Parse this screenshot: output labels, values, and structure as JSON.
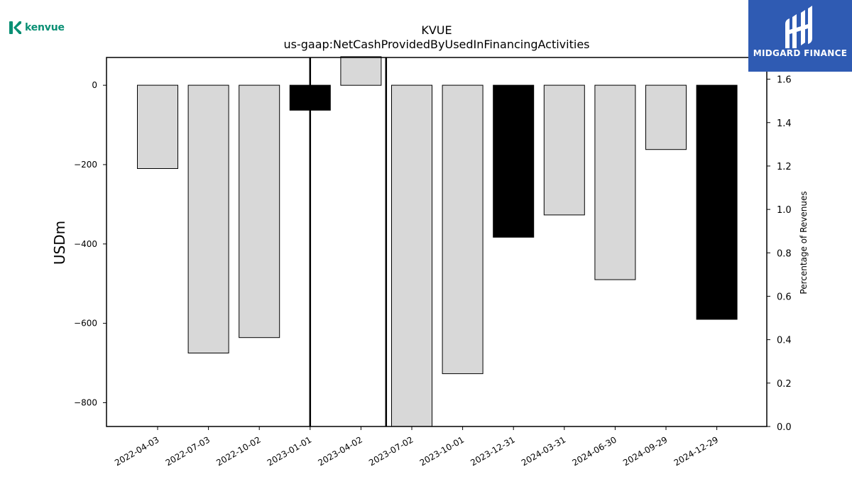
{
  "branding": {
    "company_logo_text": "kenvue",
    "company_logo_color": "#0a8f74",
    "badge_text": "MIDGARD FINANCE",
    "badge_color": "#2f5bb3"
  },
  "chart_data": {
    "type": "bar",
    "title": "KVUE",
    "subtitle": "us-gaap:NetCashProvidedByUsedInFinancingActivities",
    "ylabel": "USDm",
    "y2label": "Percentage of Revenues",
    "ylim": [
      -860,
      70
    ],
    "y2lim": [
      0,
      1.7
    ],
    "yticks": [
      0,
      -200,
      -400,
      -600,
      -800
    ],
    "y2ticks": [
      0.0,
      0.2,
      0.4,
      0.6,
      0.8,
      1.0,
      1.2,
      1.4,
      1.6
    ],
    "y2tick_labels": [
      "0.0",
      "0.2",
      "0.4",
      "0.6",
      "0.8",
      "1.0",
      "1.2",
      "1.4",
      "1.6"
    ],
    "categories": [
      "2022-04-03",
      "2022-07-03",
      "2022-10-02",
      "2023-01-01",
      "2023-04-02",
      "2023-07-02",
      "2023-10-01",
      "2023-12-31",
      "2024-03-31",
      "2024-06-30",
      "2024-09-29",
      "2024-12-29"
    ],
    "values": [
      -210,
      -675,
      -636,
      -63,
      72,
      -860,
      -727,
      -383,
      -327,
      -490,
      -162,
      -590
    ],
    "bar_colors": [
      "#d8d8d8",
      "#d8d8d8",
      "#d8d8d8",
      "#000000",
      "#d8d8d8",
      "#d8d8d8",
      "#d8d8d8",
      "#000000",
      "#d8d8d8",
      "#d8d8d8",
      "#d8d8d8",
      "#000000"
    ],
    "vertical_markers": [
      "2023-01-01",
      "2023-05-17"
    ],
    "grid": false,
    "legend": "none"
  }
}
